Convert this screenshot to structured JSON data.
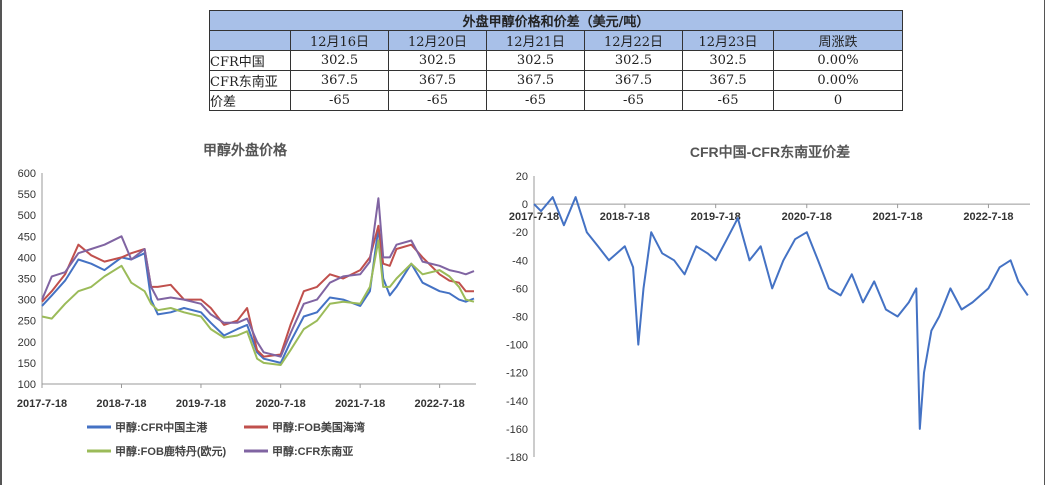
{
  "table": {
    "title": "外盘甲醇价格和价差（美元/吨）",
    "headers": [
      "",
      "12月16日",
      "12月20日",
      "12月21日",
      "12月22日",
      "12月23日",
      "周涨跌"
    ],
    "rows": [
      {
        "label": "CFR中国",
        "values": [
          "302.5",
          "302.5",
          "302.5",
          "302.5",
          "302.5",
          "0.00%"
        ]
      },
      {
        "label": "CFR东南亚",
        "values": [
          "367.5",
          "367.5",
          "367.5",
          "367.5",
          "367.5",
          "0.00%"
        ]
      },
      {
        "label": "价差",
        "values": [
          "-65",
          "-65",
          "-65",
          "-65",
          "-65",
          "0"
        ]
      }
    ]
  },
  "chart_data": [
    {
      "type": "line",
      "title": "甲醇外盘价格",
      "xlabel": "",
      "ylabel": "",
      "x_tick_labels": [
        "2017-7-18",
        "2018-7-18",
        "2019-7-18",
        "2020-7-18",
        "2021-7-18",
        "2022-7-18"
      ],
      "x_range": [
        "2017-7-18",
        "2023-1-1"
      ],
      "ylim": [
        100,
        600
      ],
      "y_ticks": [
        100,
        150,
        200,
        250,
        300,
        350,
        400,
        450,
        500,
        550,
        600
      ],
      "grid": false,
      "legend_position": "bottom",
      "series": [
        {
          "name": "甲醇:CFR中国主港",
          "color": "#4472c4",
          "x": [
            "2017-7-18",
            "2017-9-1",
            "2017-11-1",
            "2018-1-1",
            "2018-3-1",
            "2018-5-1",
            "2018-7-18",
            "2018-9-1",
            "2018-11-1",
            "2018-12-1",
            "2019-1-1",
            "2019-3-1",
            "2019-5-1",
            "2019-7-18",
            "2019-9-1",
            "2019-11-1",
            "2020-1-1",
            "2020-2-15",
            "2020-4-1",
            "2020-5-1",
            "2020-7-18",
            "2020-9-1",
            "2020-11-1",
            "2021-1-1",
            "2021-3-1",
            "2021-5-1",
            "2021-7-18",
            "2021-9-1",
            "2021-10-10",
            "2021-11-1",
            "2021-12-1",
            "2022-1-1",
            "2022-3-10",
            "2022-5-1",
            "2022-7-18",
            "2022-9-1",
            "2022-10-15",
            "2022-11-15",
            "2022-12-23"
          ],
          "y": [
            285,
            310,
            345,
            395,
            385,
            370,
            400,
            395,
            410,
            300,
            265,
            270,
            280,
            270,
            245,
            215,
            230,
            240,
            175,
            160,
            150,
            200,
            260,
            270,
            305,
            300,
            285,
            320,
            470,
            350,
            310,
            330,
            385,
            340,
            320,
            315,
            300,
            295,
            302.5
          ]
        },
        {
          "name": "甲醇:FOB美国海湾",
          "color": "#c0504d",
          "x": [
            "2017-7-18",
            "2017-9-1",
            "2017-11-1",
            "2018-1-1",
            "2018-3-1",
            "2018-5-1",
            "2018-7-18",
            "2018-9-1",
            "2018-11-1",
            "2018-12-1",
            "2019-1-1",
            "2019-3-1",
            "2019-5-1",
            "2019-7-18",
            "2019-9-1",
            "2019-11-1",
            "2020-1-1",
            "2020-2-15",
            "2020-4-1",
            "2020-5-1",
            "2020-7-18",
            "2020-9-1",
            "2020-11-1",
            "2021-1-1",
            "2021-3-1",
            "2021-5-1",
            "2021-7-18",
            "2021-9-1",
            "2021-10-10",
            "2021-11-1",
            "2021-12-1",
            "2022-1-1",
            "2022-3-10",
            "2022-5-1",
            "2022-7-18",
            "2022-9-1",
            "2022-10-15",
            "2022-11-15",
            "2022-12-23"
          ],
          "y": [
            295,
            320,
            360,
            430,
            405,
            390,
            400,
            410,
            420,
            330,
            330,
            335,
            300,
            300,
            280,
            240,
            250,
            280,
            180,
            165,
            170,
            240,
            320,
            330,
            360,
            350,
            370,
            400,
            475,
            385,
            380,
            420,
            430,
            400,
            360,
            345,
            340,
            320,
            320
          ]
        },
        {
          "name": "甲醇:FOB鹿特丹(欧元)",
          "color": "#9bbb59",
          "x": [
            "2017-7-18",
            "2017-9-1",
            "2017-11-1",
            "2018-1-1",
            "2018-3-1",
            "2018-5-1",
            "2018-7-18",
            "2018-9-1",
            "2018-11-1",
            "2018-12-1",
            "2019-1-1",
            "2019-3-1",
            "2019-5-1",
            "2019-7-18",
            "2019-9-1",
            "2019-11-1",
            "2020-1-1",
            "2020-2-15",
            "2020-4-1",
            "2020-5-1",
            "2020-7-18",
            "2020-9-1",
            "2020-11-1",
            "2021-1-1",
            "2021-3-1",
            "2021-5-1",
            "2021-7-18",
            "2021-9-1",
            "2021-10-10",
            "2021-11-1",
            "2021-12-1",
            "2022-1-1",
            "2022-3-10",
            "2022-5-1",
            "2022-7-18",
            "2022-9-1",
            "2022-10-15",
            "2022-11-15",
            "2022-12-23"
          ],
          "y": [
            260,
            255,
            290,
            320,
            330,
            355,
            380,
            340,
            320,
            290,
            275,
            280,
            270,
            260,
            230,
            210,
            215,
            225,
            160,
            150,
            145,
            180,
            230,
            250,
            290,
            295,
            290,
            330,
            440,
            330,
            330,
            350,
            385,
            360,
            370,
            355,
            330,
            300,
            295
          ]
        },
        {
          "name": "甲醇:CFR东南亚",
          "color": "#8064a2",
          "x": [
            "2017-7-18",
            "2017-9-1",
            "2017-11-1",
            "2018-1-1",
            "2018-3-1",
            "2018-5-1",
            "2018-7-18",
            "2018-9-1",
            "2018-11-1",
            "2018-12-1",
            "2019-1-1",
            "2019-3-1",
            "2019-5-1",
            "2019-7-18",
            "2019-9-1",
            "2019-11-1",
            "2020-1-1",
            "2020-2-15",
            "2020-4-1",
            "2020-5-1",
            "2020-7-18",
            "2020-9-1",
            "2020-11-1",
            "2021-1-1",
            "2021-3-1",
            "2021-5-1",
            "2021-7-18",
            "2021-9-1",
            "2021-10-10",
            "2021-11-1",
            "2021-12-1",
            "2022-1-1",
            "2022-3-10",
            "2022-5-1",
            "2022-7-18",
            "2022-9-1",
            "2022-10-15",
            "2022-11-15",
            "2022-12-23"
          ],
          "y": [
            300,
            355,
            365,
            410,
            420,
            430,
            450,
            395,
            420,
            330,
            300,
            305,
            300,
            290,
            265,
            245,
            245,
            255,
            200,
            175,
            165,
            220,
            290,
            300,
            340,
            355,
            360,
            390,
            540,
            400,
            400,
            430,
            440,
            390,
            380,
            370,
            365,
            360,
            367.5
          ]
        }
      ]
    },
    {
      "type": "line",
      "title": "CFR中国-CFR东南亚价差",
      "xlabel": "",
      "ylabel": "",
      "x_tick_labels": [
        "2017-7-18",
        "2018-7-18",
        "2019-7-18",
        "2020-7-18",
        "2021-7-18",
        "2022-7-18"
      ],
      "x_range": [
        "2017-7-18",
        "2023-1-1"
      ],
      "ylim": [
        -180,
        20
      ],
      "y_ticks": [
        20,
        0,
        -20,
        -40,
        -60,
        -80,
        -100,
        -120,
        -140,
        -160,
        -180
      ],
      "grid": false,
      "series": [
        {
          "color": "#4472c4",
          "x": [
            "2017-7-18",
            "2017-8-15",
            "2017-10-1",
            "2017-11-15",
            "2018-1-1",
            "2018-2-15",
            "2018-4-1",
            "2018-5-15",
            "2018-7-18",
            "2018-8-20",
            "2018-9-10",
            "2018-10-1",
            "2018-11-1",
            "2018-12-15",
            "2019-2-1",
            "2019-3-15",
            "2019-5-1",
            "2019-6-15",
            "2019-7-18",
            "2019-9-1",
            "2019-10-15",
            "2019-12-1",
            "2020-1-15",
            "2020-3-1",
            "2020-4-15",
            "2020-6-1",
            "2020-7-18",
            "2020-9-1",
            "2020-10-15",
            "2020-12-1",
            "2021-1-15",
            "2021-3-1",
            "2021-4-15",
            "2021-6-1",
            "2021-7-18",
            "2021-9-1",
            "2021-10-1",
            "2021-10-15",
            "2021-11-1",
            "2021-12-1",
            "2022-1-1",
            "2022-2-15",
            "2022-4-1",
            "2022-5-15",
            "2022-7-18",
            "2022-9-1",
            "2022-10-15",
            "2022-11-15",
            "2022-12-23"
          ],
          "y": [
            0,
            -5,
            5,
            -15,
            5,
            -20,
            -30,
            -40,
            -30,
            -45,
            -100,
            -60,
            -20,
            -35,
            -40,
            -50,
            -30,
            -35,
            -40,
            -25,
            -10,
            -40,
            -30,
            -60,
            -40,
            -25,
            -20,
            -40,
            -60,
            -65,
            -50,
            -70,
            -55,
            -75,
            -80,
            -70,
            -60,
            -160,
            -120,
            -90,
            -80,
            -60,
            -75,
            -70,
            -60,
            -45,
            -40,
            -55,
            -65
          ]
        }
      ]
    }
  ]
}
